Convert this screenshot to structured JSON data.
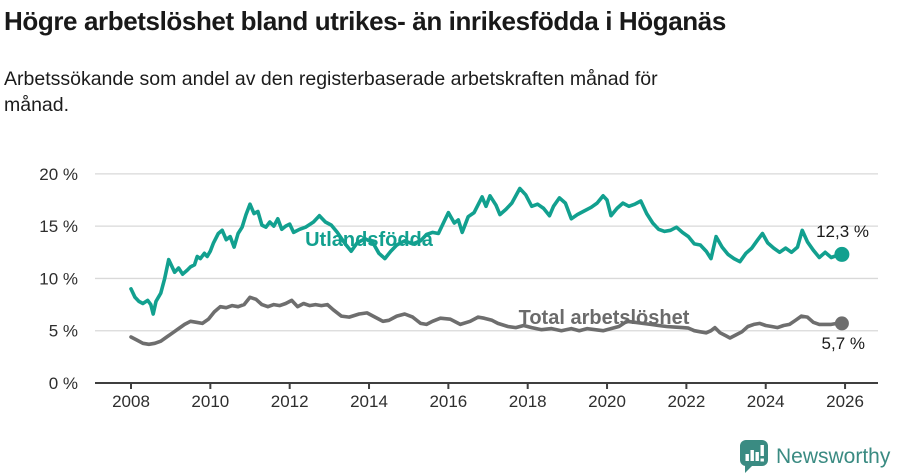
{
  "header": {
    "title": "Högre arbetslöshet bland utrikes- än inrikesfödda i Höganäs",
    "subtitle_line1": "Arbetssökande som andel av den registerbaserade arbetskraften månad för",
    "subtitle_line2": "månad."
  },
  "chart_data": {
    "type": "line",
    "title": "Högre arbetslöshet bland utrikes- än inrikesfödda i Höganäs",
    "subtitle": "Arbetssökande som andel av den registerbaserade arbetskraften månad för månad.",
    "grid": true,
    "grid_color": "#d9d9d9",
    "x_axis": {
      "ticks": [
        2008,
        2010,
        2012,
        2014,
        2016,
        2018,
        2020,
        2022,
        2024,
        2026
      ],
      "lim": [
        2007.1,
        2026.8
      ]
    },
    "y_axis": {
      "tick_values": [
        0,
        5,
        10,
        15,
        20
      ],
      "tick_labels": [
        "0 %",
        "5 %",
        "10 %",
        "15 %",
        "20 %"
      ],
      "lim": [
        0,
        20.6
      ]
    },
    "series": [
      {
        "name": "Utlandsfödda",
        "color": "#12a08f",
        "end_label": "12,3 %",
        "end_value": 12.3,
        "x": [
          2008.0,
          2008.1,
          2008.2,
          2008.3,
          2008.42,
          2008.5,
          2008.56,
          2008.63,
          2008.75,
          2008.85,
          2008.95,
          2009.1,
          2009.2,
          2009.3,
          2009.42,
          2009.5,
          2009.6,
          2009.67,
          2009.75,
          2009.85,
          2009.92,
          2010.0,
          2010.08,
          2010.2,
          2010.3,
          2010.4,
          2010.5,
          2010.6,
          2010.7,
          2010.8,
          2010.9,
          2011.0,
          2011.1,
          2011.2,
          2011.3,
          2011.4,
          2011.5,
          2011.6,
          2011.7,
          2011.8,
          2011.9,
          2012.0,
          2012.1,
          2012.25,
          2012.4,
          2012.6,
          2012.75,
          2012.9,
          2013.05,
          2013.2,
          2013.4,
          2013.55,
          2013.7,
          2013.9,
          2014.1,
          2014.25,
          2014.4,
          2014.55,
          2014.7,
          2014.9,
          2015.1,
          2015.3,
          2015.45,
          2015.6,
          2015.75,
          2015.9,
          2016.0,
          2016.15,
          2016.25,
          2016.35,
          2016.5,
          2016.65,
          2016.85,
          2016.95,
          2017.05,
          2017.2,
          2017.3,
          2017.45,
          2017.6,
          2017.8,
          2017.95,
          2018.1,
          2018.25,
          2018.4,
          2018.55,
          2018.65,
          2018.8,
          2018.95,
          2019.1,
          2019.25,
          2019.4,
          2019.6,
          2019.75,
          2019.9,
          2020.0,
          2020.1,
          2020.25,
          2020.4,
          2020.55,
          2020.7,
          2020.85,
          2021.0,
          2021.15,
          2021.3,
          2021.45,
          2021.6,
          2021.75,
          2021.9,
          2022.05,
          2022.2,
          2022.35,
          2022.5,
          2022.62,
          2022.75,
          2022.9,
          2023.05,
          2023.2,
          2023.35,
          2023.5,
          2023.65,
          2023.8,
          2023.92,
          2024.05,
          2024.2,
          2024.35,
          2024.5,
          2024.65,
          2024.8,
          2024.92,
          2025.05,
          2025.2,
          2025.35,
          2025.5,
          2025.65,
          2025.8,
          2025.92
        ],
        "y": [
          9.0,
          8.2,
          7.8,
          7.6,
          7.9,
          7.5,
          6.6,
          7.8,
          8.6,
          10.0,
          11.8,
          10.6,
          11.0,
          10.4,
          10.8,
          11.1,
          11.3,
          12.1,
          11.9,
          12.4,
          12.1,
          12.6,
          13.4,
          14.3,
          14.6,
          13.7,
          14.0,
          13.0,
          14.3,
          14.9,
          16.1,
          17.1,
          16.2,
          16.4,
          15.1,
          14.9,
          15.4,
          15.0,
          15.7,
          14.7,
          15.0,
          15.2,
          14.4,
          14.7,
          14.9,
          15.4,
          16.0,
          15.4,
          15.1,
          14.4,
          13.3,
          12.6,
          13.4,
          13.8,
          13.4,
          12.4,
          11.9,
          12.6,
          13.2,
          13.6,
          13.3,
          13.6,
          14.2,
          14.4,
          14.3,
          15.5,
          16.3,
          15.3,
          15.6,
          14.4,
          15.9,
          16.3,
          17.8,
          16.9,
          17.9,
          17.0,
          16.1,
          16.6,
          17.2,
          18.6,
          18.0,
          16.9,
          17.1,
          16.7,
          16.0,
          16.9,
          17.7,
          17.2,
          15.7,
          16.1,
          16.4,
          16.8,
          17.2,
          17.9,
          17.5,
          16.0,
          16.7,
          17.2,
          16.9,
          17.1,
          17.4,
          16.2,
          15.3,
          14.7,
          14.5,
          14.6,
          14.9,
          14.4,
          14.0,
          13.3,
          13.2,
          12.6,
          11.9,
          14.0,
          13.0,
          12.3,
          11.9,
          11.6,
          12.4,
          12.9,
          13.7,
          14.3,
          13.4,
          12.9,
          12.5,
          12.9,
          12.5,
          13.0,
          14.6,
          13.5,
          12.7,
          12.0,
          12.5,
          12.0,
          12.2,
          12.3
        ]
      },
      {
        "name": "Total arbetslöshet",
        "color": "#6e6e6e",
        "end_label": "5,7 %",
        "end_value": 5.7,
        "x": [
          2008.0,
          2008.15,
          2008.3,
          2008.45,
          2008.6,
          2008.75,
          2008.9,
          2009.05,
          2009.2,
          2009.35,
          2009.5,
          2009.65,
          2009.8,
          2009.95,
          2010.1,
          2010.25,
          2010.4,
          2010.55,
          2010.7,
          2010.85,
          2011.0,
          2011.15,
          2011.3,
          2011.45,
          2011.6,
          2011.75,
          2011.9,
          2012.05,
          2012.2,
          2012.35,
          2012.5,
          2012.65,
          2012.8,
          2012.95,
          2013.1,
          2013.3,
          2013.5,
          2013.75,
          2013.95,
          2014.15,
          2014.35,
          2014.5,
          2014.7,
          2014.9,
          2015.1,
          2015.3,
          2015.45,
          2015.6,
          2015.8,
          2016.05,
          2016.3,
          2016.55,
          2016.75,
          2016.9,
          2017.1,
          2017.25,
          2017.5,
          2017.7,
          2017.9,
          2018.1,
          2018.35,
          2018.6,
          2018.85,
          2019.1,
          2019.3,
          2019.5,
          2019.7,
          2019.9,
          2020.1,
          2020.3,
          2020.5,
          2020.7,
          2020.9,
          2021.1,
          2021.3,
          2021.5,
          2021.7,
          2021.9,
          2022.05,
          2022.2,
          2022.35,
          2022.5,
          2022.62,
          2022.72,
          2022.85,
          2023.0,
          2023.1,
          2023.25,
          2023.4,
          2023.55,
          2023.7,
          2023.85,
          2024.0,
          2024.15,
          2024.3,
          2024.45,
          2024.6,
          2024.75,
          2024.9,
          2025.05,
          2025.2,
          2025.35,
          2025.5,
          2025.65,
          2025.8,
          2025.92
        ],
        "y": [
          4.4,
          4.1,
          3.8,
          3.7,
          3.8,
          4.0,
          4.4,
          4.8,
          5.2,
          5.6,
          5.9,
          5.8,
          5.7,
          6.1,
          6.8,
          7.3,
          7.2,
          7.4,
          7.3,
          7.5,
          8.2,
          8.0,
          7.5,
          7.3,
          7.5,
          7.4,
          7.6,
          7.9,
          7.3,
          7.6,
          7.4,
          7.5,
          7.4,
          7.5,
          7.0,
          6.4,
          6.3,
          6.6,
          6.7,
          6.3,
          5.9,
          6.0,
          6.4,
          6.6,
          6.3,
          5.7,
          5.6,
          5.9,
          6.2,
          6.1,
          5.6,
          5.9,
          6.3,
          6.2,
          6.0,
          5.7,
          5.4,
          5.3,
          5.5,
          5.3,
          5.1,
          5.2,
          5.0,
          5.2,
          5.0,
          5.2,
          5.1,
          5.0,
          5.2,
          5.4,
          5.9,
          5.8,
          5.7,
          5.6,
          5.5,
          5.4,
          5.35,
          5.3,
          5.25,
          5.0,
          4.9,
          4.8,
          5.0,
          5.3,
          4.8,
          4.5,
          4.3,
          4.6,
          4.9,
          5.4,
          5.6,
          5.7,
          5.5,
          5.4,
          5.3,
          5.5,
          5.6,
          6.0,
          6.4,
          6.3,
          5.8,
          5.6,
          5.6,
          5.6,
          5.7,
          5.7
        ]
      }
    ],
    "legend_position": "inline-labels"
  },
  "footer": {
    "brand": "Newsworthy",
    "brand_color": "#3a8b82"
  }
}
